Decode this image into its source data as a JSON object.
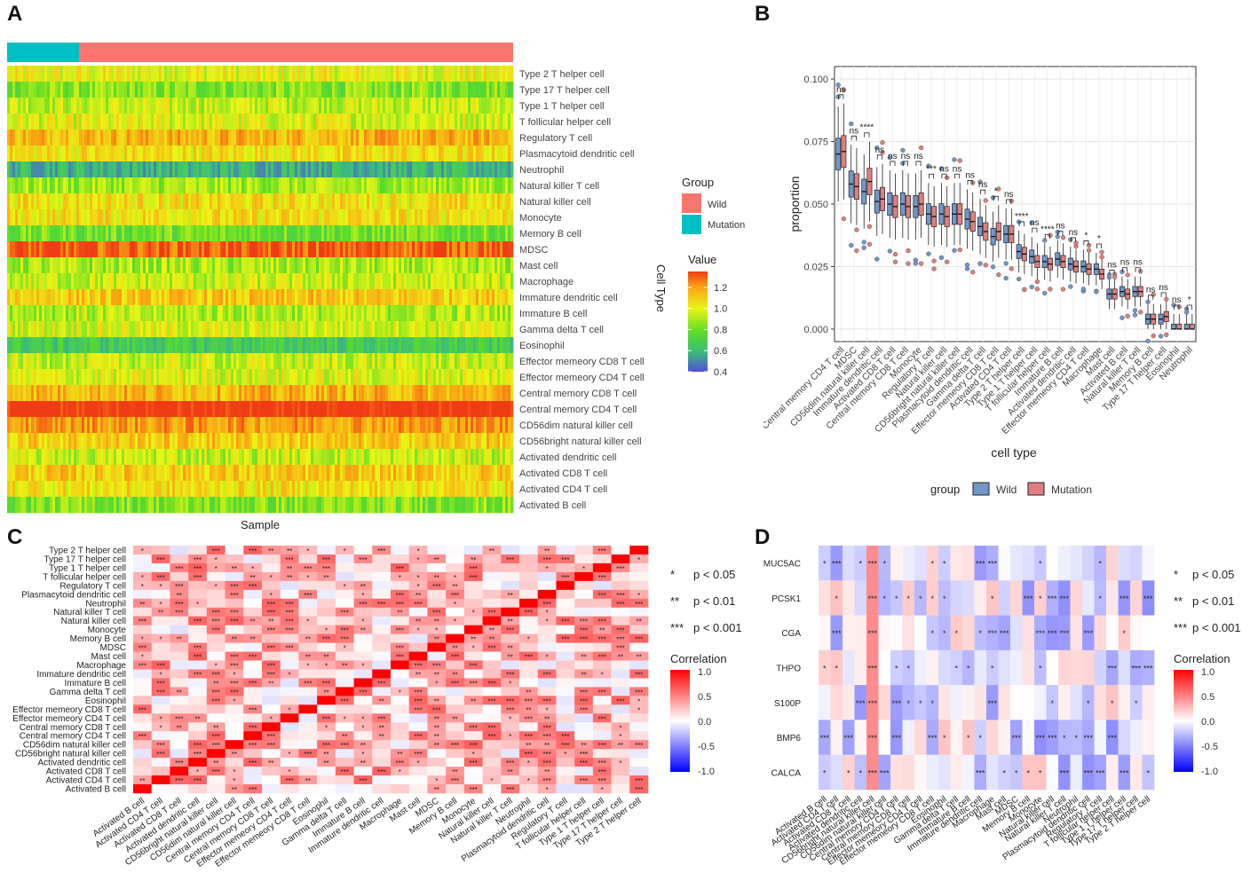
{
  "panel_labels": {
    "a": "A",
    "b": "B",
    "c": "C",
    "d": "D"
  },
  "colors": {
    "wild": "#f8766d",
    "mutation": "#00bfc4",
    "box_wild": "#7297c9",
    "box_mutation": "#e07f7f"
  },
  "chart_data": [
    {
      "id": "A",
      "type": "heatmap",
      "title": "",
      "xlabel": "Sample",
      "ylabel": "Cell Type",
      "rows": [
        "Type 2 T helper cell",
        "Type 17 T helper cell",
        "Type 1 T helper cell",
        "T follicular helper cell",
        "Regulatory T cell",
        "Plasmacytoid dendritic cell",
        "Neutrophil",
        "Natural killer T cell",
        "Natural killer cell",
        "Monocyte",
        "Memory B cell",
        "MDSC",
        "Mast cell",
        "Macrophage",
        "Immature dendritic cell",
        "Immature  B cell",
        "Gamma delta T cell",
        "Eosinophil",
        "Effector memeory CD8 T cell",
        "Effector memeory CD4 T cell",
        "Central memory CD8 T cell",
        "Central memory CD4 T cell",
        "CD56dim natural killer cell",
        "CD56bright natural killer cell",
        "Activated dendritic cell",
        "Activated CD8 T cell",
        "Activated CD4 T cell",
        "Activated B cell"
      ],
      "row_means": [
        1.0,
        0.85,
        0.95,
        0.98,
        1.15,
        1.05,
        0.6,
        0.9,
        1.05,
        1.05,
        0.82,
        1.3,
        0.9,
        0.95,
        1.1,
        0.92,
        0.98,
        0.68,
        0.95,
        0.98,
        1.15,
        1.4,
        1.2,
        1.1,
        0.95,
        1.1,
        1.05,
        0.85
      ],
      "group_legend": {
        "title": "Group",
        "items": [
          "Wild",
          "Mutation"
        ]
      },
      "value_legend": {
        "title": "Value",
        "ticks": [
          "1.2",
          "1.0",
          "0.8",
          "0.6",
          "0.4"
        ],
        "range": [
          0.4,
          1.35
        ]
      },
      "mutation_fraction": 0.14
    },
    {
      "id": "B",
      "type": "box",
      "xlabel": "cell type",
      "ylabel": "proportion",
      "ylim": [
        -0.005,
        0.105
      ],
      "yticks": [
        "0.000",
        "0.025",
        "0.050",
        "0.075",
        "0.100"
      ],
      "ytick_values": [
        0,
        0.025,
        0.05,
        0.075,
        0.1
      ],
      "legend": {
        "title": "group",
        "items": [
          "Wild",
          "Mutation"
        ]
      },
      "categories": [
        "Central memory CD4 T cell",
        "MDSC",
        "CD56dim natural killer cell",
        "Immature dendritic cell",
        "Activated CD8 T cell",
        "Central memory CD8 T cell",
        "Monocyte",
        "Regulatory T cell",
        "Natural killer cell",
        "CD56bright natural killer cell",
        "Plasmacytoid dendritic cell",
        "Gamma delta T cell",
        "Effector memeory CD8 T cell",
        "Activated CD4 T cell",
        "Type 2 T helper cell",
        "Type 1 T helper cell",
        "T follicular helper cell",
        "Immature B cell",
        "Activated dendritic cell",
        "Effector memeory CD4 T cell",
        "Macrophage",
        "Mast cell",
        "Activated B cell",
        "Natural killer T cell",
        "Memory B cell",
        "Type 17 T helper cell",
        "Eosinophil",
        "Neutrophil"
      ],
      "significance": [
        "ns",
        "ns",
        "****",
        "ns",
        "ns",
        "ns",
        "ns",
        "***",
        "ns",
        "ns",
        "ns",
        "ns",
        "*",
        "ns",
        "****",
        "ns",
        "****",
        "ns",
        "ns",
        "*",
        "*",
        "ns",
        "ns",
        "ns",
        "ns",
        "ns",
        "ns",
        "*"
      ],
      "series": [
        {
          "name": "Wild",
          "medians": [
            0.07,
            0.058,
            0.055,
            0.051,
            0.05,
            0.05,
            0.049,
            0.046,
            0.046,
            0.046,
            0.044,
            0.041,
            0.037,
            0.038,
            0.031,
            0.029,
            0.027,
            0.028,
            0.026,
            0.025,
            0.024,
            0.014,
            0.015,
            0.015,
            0.004,
            0.004,
            0.0,
            0.0
          ]
        },
        {
          "name": "Mutation",
          "medians": [
            0.071,
            0.057,
            0.059,
            0.052,
            0.049,
            0.049,
            0.05,
            0.045,
            0.045,
            0.046,
            0.043,
            0.039,
            0.039,
            0.038,
            0.03,
            0.027,
            0.026,
            0.027,
            0.025,
            0.024,
            0.022,
            0.014,
            0.014,
            0.015,
            0.004,
            0.005,
            0.0,
            0.0
          ]
        }
      ]
    },
    {
      "id": "C",
      "type": "heatmap",
      "title": "",
      "legend_title": "Correlation",
      "legend_ticks": [
        "1.0",
        "0.5",
        "0.0",
        "-0.5",
        "-1.0"
      ],
      "sig_legend": [
        "p < 0.05",
        "p < 0.01",
        "p < 0.001"
      ],
      "sig_marks": [
        "*",
        "**",
        "***"
      ],
      "rows": [
        "Type 2 T helper cell",
        "Type 17 T helper cell",
        "Type 1 T helper cell",
        "T follicular helper cell",
        "Regulatory T cell",
        "Plasmacytoid dendritic cell",
        "Neutrophil",
        "Natural killer T cell",
        "Natural killer cell",
        "Monocyte",
        "Memory B cell",
        "MDSC",
        "Mast cell",
        "Macrophage",
        "Immature dendritic cell",
        "Immature  B cell",
        "Gamma delta T cell",
        "Eosinophil",
        "Effector memeory CD8 T cell",
        "Effector memeory CD4 T cell",
        "Central memory CD8 T cell",
        "Central memory CD4 T cell",
        "CD56dim natural killer cell",
        "CD56bright natural killer cell",
        "Activated dendritic cell",
        "Activated CD8 T cell",
        "Activated CD4 T cell",
        "Activated B cell"
      ],
      "columns": [
        "Activated B cell",
        "Activated CD4 T cell",
        "Activated CD8 T cell",
        "Activated dendritic cell",
        "CD56bright natural killer cell",
        "CD56dim natural killer cell",
        "Central memory CD4 T cell",
        "Central memory CD8 T cell",
        "Effector memeory CD4 T cell",
        "Effector memeory CD8 T cell",
        "Eosinophil",
        "Gamma delta T cell",
        "Immature  B cell",
        "Immature dendritic cell",
        "Macrophage",
        "Mast cell",
        "MDSC",
        "Memory B cell",
        "Monocyte",
        "Natural killer cell",
        "Natural killer T cell",
        "Neutrophil",
        "Plasmacytoid dendritic cell",
        "Regulatory T cell",
        "T follicular helper cell",
        "Type 1 T helper cell",
        "Type 17 T helper cell",
        "Type 2 T helper cell"
      ]
    },
    {
      "id": "D",
      "type": "heatmap",
      "legend_title": "Correlation",
      "legend_ticks": [
        "1.0",
        "0.5",
        "0.0",
        "-0.5",
        "-1.0"
      ],
      "sig_legend": [
        "p < 0.05",
        "p < 0.01",
        "p < 0.001"
      ],
      "sig_marks": [
        "*",
        "**",
        "***"
      ],
      "rows": [
        "MUC5AC",
        "PCSK1",
        "CGA",
        "THPO",
        "S100P",
        "BMP6",
        "CALCA"
      ],
      "columns": [
        "Activated B cell",
        "Activated CD4 T cell",
        "Activated CD8 T cell",
        "Activated dendritic cell",
        "CD56bright natural killer cell",
        "CD56dim natural killer cell",
        "Central memory CD4 T cell",
        "Central memory CD8 T cell",
        "Effector memeory CD4 T cell",
        "Effector memeory CD8 T cell",
        "Eosinophil",
        "Gamma delta T cell",
        "Immature  B cell",
        "Immature dendritic cell",
        "Macrophage",
        "Mast cell",
        "MDSC",
        "Memory B cell",
        "Monocyte",
        "Natural killer cell",
        "Natural killer T cell",
        "Neutrophil",
        "Plasmacytoid dendritic cell",
        "Regulatory T cell",
        "T follicular helper cell",
        "Type 1 T helper cell",
        "Type 17 T helper cell",
        "Type 2 T helper cell"
      ]
    }
  ]
}
